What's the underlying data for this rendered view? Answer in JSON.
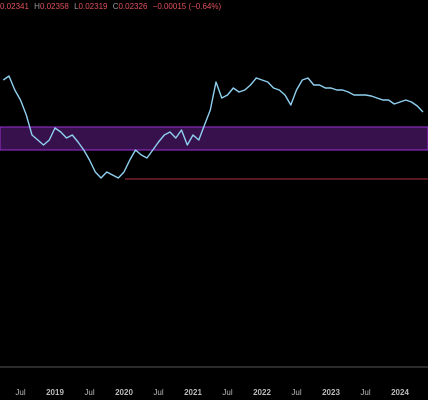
{
  "chart_data": {
    "type": "line",
    "header": {
      "open": "0.02341",
      "high_label": "H",
      "high": "0.02358",
      "low_label": "L",
      "low": "0.02319",
      "close_label": "C",
      "close": "0.02326",
      "change": "−0.00015 (−0.64%)"
    },
    "x": [
      "2018-04",
      "2018-05",
      "2018-06",
      "2018-07",
      "2018-08",
      "2018-09",
      "2018-10",
      "2018-11",
      "2018-12",
      "2019-01",
      "2019-02",
      "2019-03",
      "2019-04",
      "2019-05",
      "2019-06",
      "2019-07",
      "2019-08",
      "2019-09",
      "2019-10",
      "2019-11",
      "2019-12",
      "2020-01",
      "2020-02",
      "2020-03",
      "2020-04",
      "2020-05",
      "2020-06",
      "2020-07",
      "2020-08",
      "2020-09",
      "2020-10",
      "2020-11",
      "2020-12",
      "2021-01",
      "2021-02",
      "2021-03",
      "2021-04",
      "2021-05",
      "2021-06",
      "2021-07",
      "2021-08",
      "2021-09",
      "2021-10",
      "2021-11",
      "2021-12",
      "2022-01",
      "2022-02",
      "2022-03",
      "2022-04",
      "2022-05",
      "2022-06",
      "2022-07",
      "2022-08",
      "2022-09",
      "2022-10",
      "2022-11",
      "2022-12",
      "2023-01",
      "2023-02",
      "2023-03",
      "2023-04",
      "2023-05",
      "2023-06",
      "2023-07",
      "2023-08",
      "2023-09",
      "2023-10",
      "2023-11",
      "2023-12",
      "2024-01",
      "2024-02",
      "2024-03",
      "2024-04",
      "2024-05"
    ],
    "series": [
      {
        "color": "#8fd0f0",
        "values": [
          0.0271,
          0.02758,
          0.0259,
          0.0247,
          0.0229,
          0.0205,
          0.0199,
          0.0193,
          0.0199,
          0.02134,
          0.02086,
          0.02014,
          0.0205,
          0.01966,
          0.0187,
          0.0175,
          0.01606,
          0.01534,
          0.01606,
          0.0157,
          0.01534,
          0.01606,
          0.0175,
          0.0187,
          0.0181,
          0.01774,
          0.0187,
          0.01966,
          0.0205,
          0.02086,
          0.02014,
          0.0211,
          0.0193,
          0.0205,
          0.0199,
          0.0217,
          0.0235,
          0.02686,
          0.02494,
          0.0253,
          0.02614,
          0.02566,
          0.0259,
          0.0265,
          0.02734,
          0.0271,
          0.02686,
          0.02614,
          0.0259,
          0.0253,
          0.0241,
          0.0259,
          0.0271,
          0.02734,
          0.0265,
          0.0265,
          0.02614,
          0.02614,
          0.0259,
          0.0259,
          0.02566,
          0.0253,
          0.0253,
          0.0253,
          0.02518,
          0.02494,
          0.0247,
          0.0247,
          0.02422,
          0.02446,
          0.0247,
          0.02446,
          0.02398,
          0.02326
        ]
      }
    ],
    "ylim": [
      -0.00722,
      0.0367
    ],
    "zone": {
      "color": "#9b30d9",
      "values": [
        0.0187,
        0.02146
      ]
    },
    "support_line": {
      "color": "#b03040",
      "value": 0.01522
    },
    "xticks": [
      {
        "value": "2018-07",
        "label": "Jul"
      },
      {
        "value": "2019-01",
        "label": "2019"
      },
      {
        "value": "2019-07",
        "label": "Jul"
      },
      {
        "value": "2020-01",
        "label": "2020"
      },
      {
        "value": "2020-07",
        "label": "Jul"
      },
      {
        "value": "2021-01",
        "label": "2021"
      },
      {
        "value": "2021-07",
        "label": "Jul"
      },
      {
        "value": "2022-01",
        "label": "2022"
      },
      {
        "value": "2022-07",
        "label": "Jul"
      },
      {
        "value": "2023-01",
        "label": "2023"
      },
      {
        "value": "2023-07",
        "label": "Jul"
      },
      {
        "value": "2024-01",
        "label": "2024"
      }
    ]
  }
}
